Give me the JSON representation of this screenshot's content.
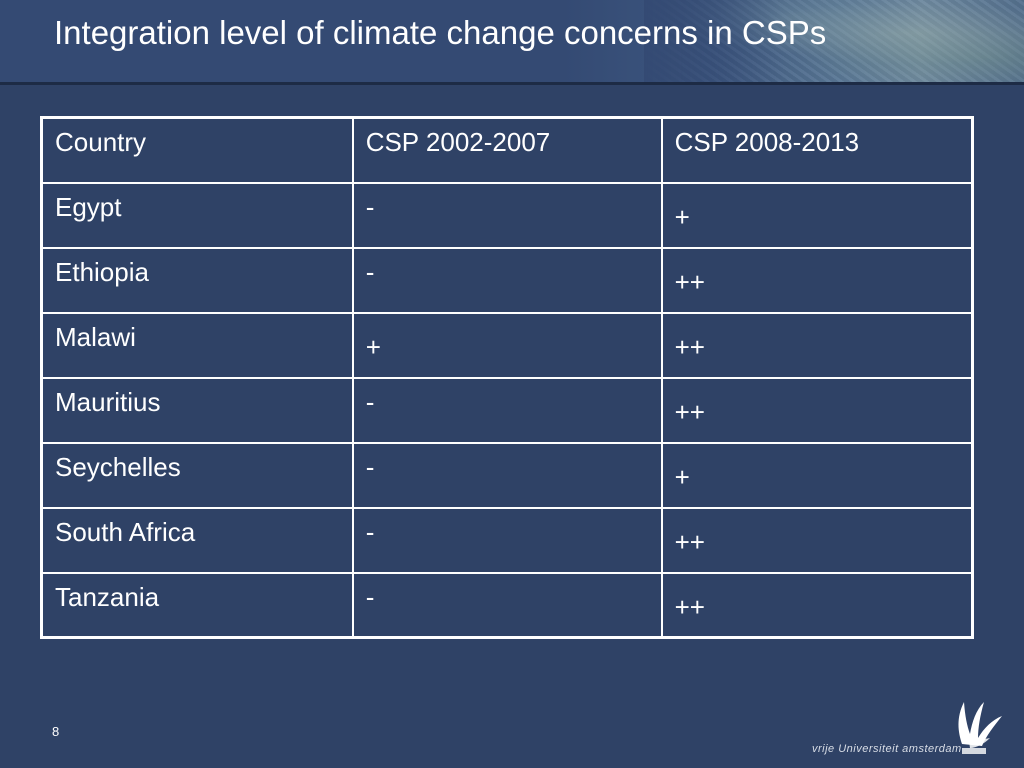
{
  "slide": {
    "title": "Integration level of climate change concerns in CSPs",
    "page_number": "8"
  },
  "table": {
    "headers": [
      "Country",
      "CSP 2002-2007",
      "CSP 2008-2013"
    ],
    "rows": [
      [
        "Egypt",
        "-",
        "+"
      ],
      [
        "Ethiopia",
        "-",
        "++"
      ],
      [
        "Malawi",
        "+",
        "++"
      ],
      [
        "Mauritius",
        "-",
        "++"
      ],
      [
        "Seychelles",
        "-",
        "+"
      ],
      [
        "South Africa",
        "-",
        "++"
      ],
      [
        "Tanzania",
        "-",
        "++"
      ]
    ]
  },
  "logo": {
    "text": "vrije Universiteit   amsterdam",
    "icon": "vu-griffin-logo-icon"
  },
  "colors": {
    "background": "#2f4266",
    "text": "#ffffff",
    "border": "#ffffff"
  }
}
